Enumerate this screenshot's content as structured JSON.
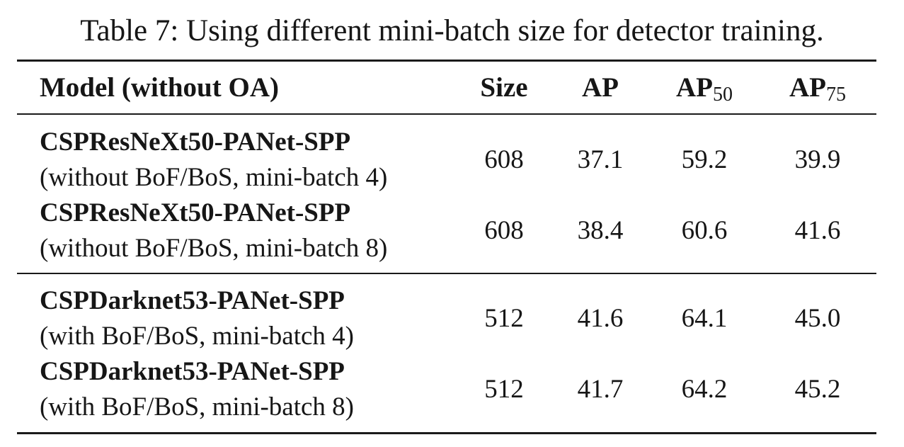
{
  "caption": "Table 7: Using different mini-batch size for detector training.",
  "columns": {
    "model": "Model (without OA)",
    "size": "Size",
    "ap": "AP",
    "ap50_base": "AP",
    "ap50_sub": "50",
    "ap75_base": "AP",
    "ap75_sub": "75"
  },
  "rows": [
    {
      "model": "CSPResNeXt50-PANet-SPP",
      "note": "(without BoF/BoS, mini-batch 4)",
      "size": "608",
      "ap": "37.1",
      "ap50": "59.2",
      "ap75": "39.9"
    },
    {
      "model": "CSPResNeXt50-PANet-SPP",
      "note": "(without BoF/BoS, mini-batch 8)",
      "size": "608",
      "ap": "38.4",
      "ap50": "60.6",
      "ap75": "41.6"
    },
    {
      "model": "CSPDarknet53-PANet-SPP",
      "note": "(with BoF/BoS, mini-batch 4)",
      "size": "512",
      "ap": "41.6",
      "ap50": "64.1",
      "ap75": "45.0"
    },
    {
      "model": "CSPDarknet53-PANet-SPP",
      "note": "(with BoF/BoS, mini-batch 8)",
      "size": "512",
      "ap": "41.7",
      "ap50": "64.2",
      "ap75": "45.2"
    }
  ]
}
